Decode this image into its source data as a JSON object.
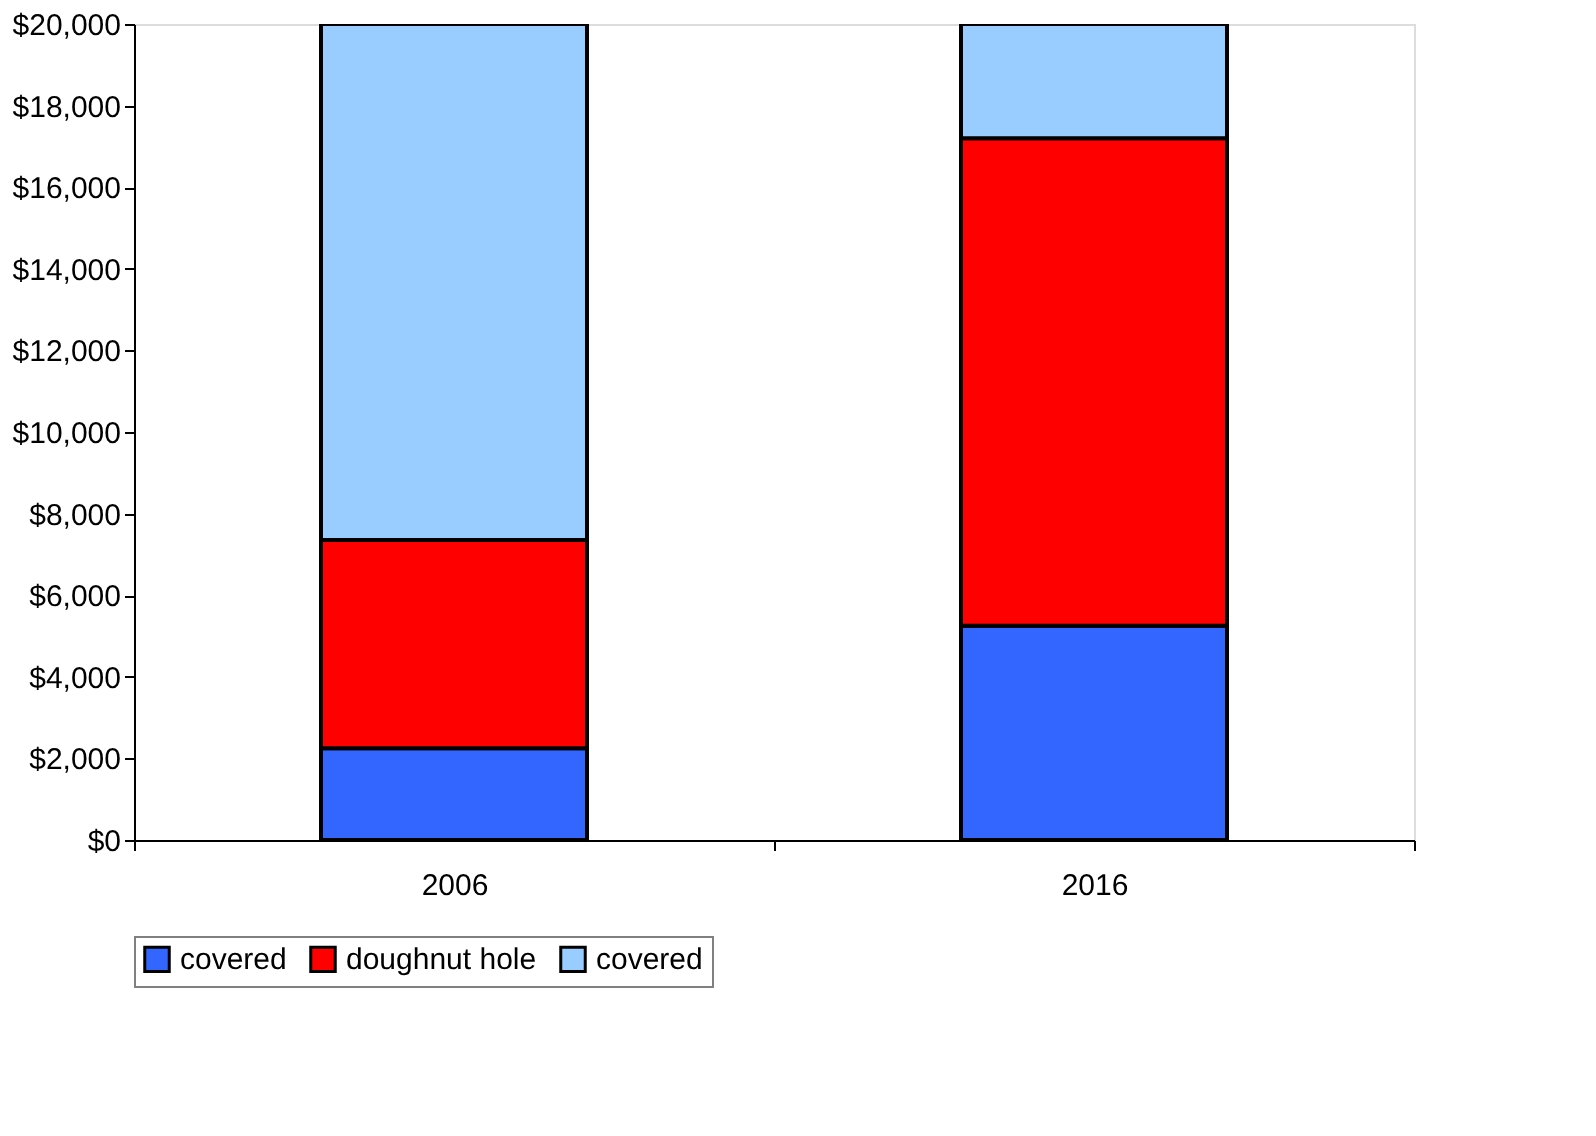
{
  "chart_data": {
    "type": "bar",
    "stacked": true,
    "categories": [
      "2006",
      "2016"
    ],
    "series": [
      {
        "name": "covered",
        "color": "#3366ff",
        "values": [
          2250,
          5250
        ]
      },
      {
        "name": "doughnut hole",
        "color": "#ff0000",
        "values": [
          5100,
          11950
        ]
      },
      {
        "name": "covered",
        "color": "#99ccff",
        "values": [
          12650,
          2800
        ]
      }
    ],
    "ylim": [
      0,
      20000
    ],
    "yticks": [
      {
        "value": 0,
        "label": "$0"
      },
      {
        "value": 2000,
        "label": "$2,000"
      },
      {
        "value": 4000,
        "label": "$4,000"
      },
      {
        "value": 6000,
        "label": "$6,000"
      },
      {
        "value": 8000,
        "label": "$8,000"
      },
      {
        "value": 10000,
        "label": "$10,000"
      },
      {
        "value": 12000,
        "label": "$12,000"
      },
      {
        "value": 14000,
        "label": "$14,000"
      },
      {
        "value": 16000,
        "label": "$16,000"
      },
      {
        "value": 18000,
        "label": "$18,000"
      },
      {
        "value": 20000,
        "label": "$20,000"
      }
    ],
    "grid": false,
    "legend": "bottom"
  }
}
